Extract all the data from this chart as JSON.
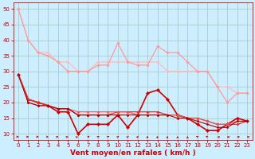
{
  "background_color": "#cceeff",
  "grid_color": "#aacccc",
  "xlabel": "Vent moyen/en rafales ( km/h )",
  "xlim": [
    -0.5,
    23.5
  ],
  "ylim": [
    8,
    52
  ],
  "yticks": [
    10,
    15,
    20,
    25,
    30,
    35,
    40,
    45,
    50
  ],
  "xticks": [
    0,
    1,
    2,
    3,
    4,
    5,
    6,
    7,
    8,
    9,
    10,
    11,
    12,
    13,
    14,
    15,
    16,
    17,
    18,
    19,
    20,
    21,
    22,
    23
  ],
  "lines": [
    {
      "x": [
        0,
        1,
        2,
        3,
        4,
        5,
        6,
        7,
        8,
        9,
        10,
        11,
        12,
        13,
        14,
        15,
        16,
        17,
        18,
        19,
        20,
        21,
        22,
        23
      ],
      "y": [
        50,
        40,
        36,
        36,
        33,
        33,
        30,
        30,
        33,
        33,
        33,
        33,
        33,
        33,
        33,
        30,
        30,
        30,
        30,
        30,
        25,
        25,
        23,
        23
      ],
      "color": "#ffbbbb",
      "lw": 0.9,
      "marker": "D",
      "ms": 1.8
    },
    {
      "x": [
        0,
        1,
        2,
        3,
        4,
        5,
        6,
        7,
        8,
        9,
        10,
        11,
        12,
        13,
        14,
        15,
        16,
        17,
        18,
        19,
        20,
        21,
        22,
        23
      ],
      "y": [
        50,
        40,
        36,
        35,
        33,
        30,
        30,
        30,
        32,
        32,
        39,
        33,
        32,
        32,
        38,
        36,
        36,
        33,
        30,
        30,
        25,
        20,
        23,
        23
      ],
      "color": "#ff9999",
      "lw": 0.9,
      "marker": "D",
      "ms": 1.8
    },
    {
      "x": [
        0,
        1,
        2,
        3,
        4,
        5,
        6,
        7,
        8,
        9,
        10,
        11,
        12,
        13,
        14,
        15,
        16,
        17,
        18,
        19,
        20,
        21,
        22,
        23
      ],
      "y": [
        29,
        21,
        20,
        19,
        17,
        17,
        10,
        13,
        13,
        13,
        16,
        12,
        16,
        23,
        24,
        21,
        16,
        15,
        13,
        11,
        11,
        13,
        15,
        14
      ],
      "color": "#cc0000",
      "lw": 1.2,
      "marker": "D",
      "ms": 2.2
    },
    {
      "x": [
        0,
        1,
        2,
        3,
        4,
        5,
        6,
        7,
        8,
        9,
        10,
        11,
        12,
        13,
        14,
        15,
        16,
        17,
        18,
        19,
        20,
        21,
        22,
        23
      ],
      "y": [
        29,
        21,
        20,
        19,
        18,
        18,
        16,
        16,
        16,
        16,
        17,
        17,
        17,
        17,
        17,
        16,
        16,
        15,
        15,
        14,
        13,
        13,
        13,
        14
      ],
      "color": "#dd3333",
      "lw": 0.9,
      "marker": "D",
      "ms": 1.8
    },
    {
      "x": [
        0,
        1,
        2,
        3,
        4,
        5,
        6,
        7,
        8,
        9,
        10,
        11,
        12,
        13,
        14,
        15,
        16,
        17,
        18,
        19,
        20,
        21,
        22,
        23
      ],
      "y": [
        29,
        20,
        19,
        19,
        18,
        18,
        17,
        17,
        17,
        17,
        17,
        17,
        16,
        16,
        16,
        16,
        16,
        15,
        15,
        14,
        13,
        13,
        14,
        14
      ],
      "color": "#ee5555",
      "lw": 0.8,
      "marker": "D",
      "ms": 1.5
    },
    {
      "x": [
        0,
        1,
        2,
        3,
        4,
        5,
        6,
        7,
        8,
        9,
        10,
        11,
        12,
        13,
        14,
        15,
        16,
        17,
        18,
        19,
        20,
        21,
        22,
        23
      ],
      "y": [
        29,
        20,
        19,
        19,
        18,
        18,
        16,
        16,
        16,
        16,
        16,
        16,
        16,
        16,
        16,
        16,
        15,
        15,
        14,
        13,
        12,
        12,
        14,
        14
      ],
      "color": "#aa0000",
      "lw": 0.8,
      "marker": "D",
      "ms": 1.5
    }
  ],
  "arrow_color": "#cc0000",
  "xlabel_color": "#cc0000",
  "xlabel_fontsize": 6.5,
  "tick_fontsize": 5,
  "tick_color": "#cc0000",
  "spine_color": "#cc0000"
}
